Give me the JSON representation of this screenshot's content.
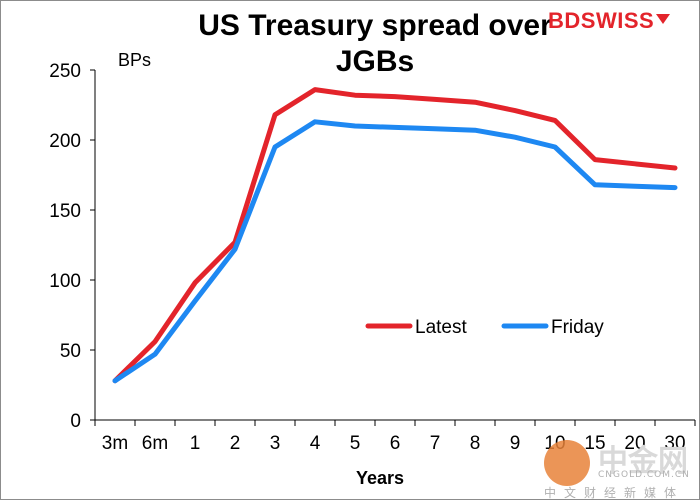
{
  "chart_data": {
    "type": "line",
    "title": "US Treasury spread over JGBs",
    "xlabel": "Years",
    "ylabel": "BPs",
    "categories": [
      "3m",
      "6m",
      "1",
      "2",
      "3",
      "4",
      "5",
      "6",
      "7",
      "8",
      "9",
      "10",
      "15",
      "20",
      "30"
    ],
    "ylim": [
      0,
      250
    ],
    "yticks": [
      0,
      50,
      100,
      150,
      200,
      250
    ],
    "grid": false,
    "legend_position": "inside-bottom-right",
    "series": [
      {
        "name": "Latest",
        "color": "#e3242b",
        "values": [
          28,
          56,
          98,
          127,
          218,
          236,
          232,
          231,
          229,
          227,
          221,
          214,
          186,
          183,
          180
        ]
      },
      {
        "name": "Friday",
        "color": "#1e88f2",
        "values": [
          28,
          47,
          85,
          122,
          195,
          213,
          210,
          209,
          208,
          207,
          202,
          195,
          168,
          167,
          166
        ]
      }
    ]
  },
  "logo": {
    "bd": "BD",
    "swiss": "SWISS"
  },
  "watermark": {
    "text": "中金网",
    "sub": "CNGOLD.COM.CN",
    "cn": "中文财经新媒体"
  }
}
